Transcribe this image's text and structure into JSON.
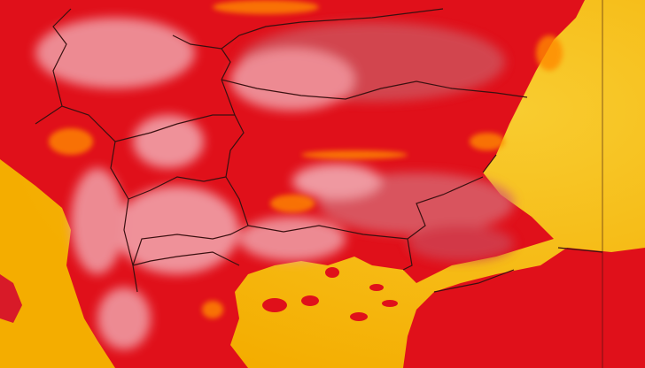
{
  "map": {
    "type": "temperature-heatmap",
    "region": "Balkans",
    "labels_shown": false,
    "colors": {
      "sea": "#f5b400",
      "sea_warm": "#f8c820",
      "land_hot": "#e0101a",
      "land_dark": "#c80a18",
      "land_cool": "#f2a0a8",
      "land_mild": "#d8505a",
      "hot_spot": "#ff8a00",
      "border": "#3a1010"
    }
  }
}
